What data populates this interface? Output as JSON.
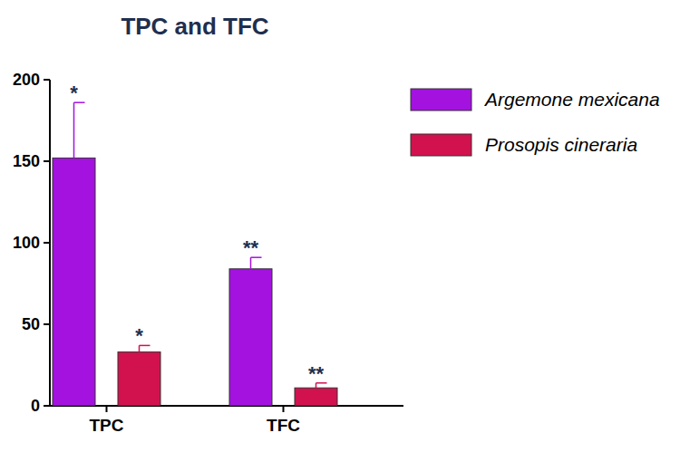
{
  "chart_data": {
    "type": "bar",
    "title": "TPC and TFC",
    "categories": [
      "TPC",
      "TFC"
    ],
    "series": [
      {
        "name": "Argemone mexicana",
        "color": "#a412e0",
        "values": [
          152,
          84
        ],
        "errors": [
          34,
          7
        ],
        "annotations": [
          "*",
          "**"
        ]
      },
      {
        "name": "Prosopis cineraria",
        "color": "#d1124f",
        "values": [
          33,
          11
        ],
        "errors": [
          4,
          3
        ],
        "annotations": [
          "*",
          "**"
        ]
      }
    ],
    "ylim": [
      0,
      200
    ],
    "yticks": [
      0,
      50,
      100,
      150,
      200
    ],
    "grid": false,
    "legend": "right"
  }
}
